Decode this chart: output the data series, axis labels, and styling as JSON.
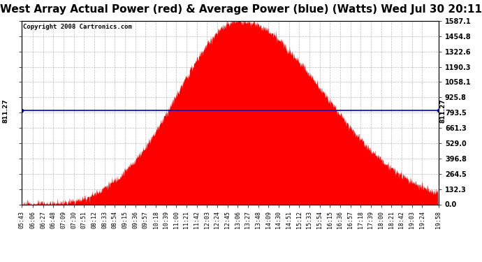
{
  "title": "West Array Actual Power (red) & Average Power (blue) (Watts) Wed Jul 30 20:11",
  "copyright": "Copyright 2008 Cartronics.com",
  "average_power": 811.27,
  "y_max": 1587.1,
  "y_ticks": [
    0.0,
    132.3,
    264.5,
    396.8,
    529.0,
    661.3,
    793.5,
    925.8,
    1058.1,
    1190.3,
    1322.6,
    1454.8,
    1587.1
  ],
  "x_labels": [
    "05:43",
    "06:06",
    "06:27",
    "06:48",
    "07:09",
    "07:30",
    "07:51",
    "08:12",
    "08:33",
    "08:54",
    "09:15",
    "09:36",
    "09:57",
    "10:18",
    "10:39",
    "11:00",
    "11:21",
    "11:42",
    "12:03",
    "12:24",
    "12:45",
    "13:06",
    "13:27",
    "13:48",
    "14:09",
    "14:30",
    "14:51",
    "15:12",
    "15:33",
    "15:54",
    "16:15",
    "16:36",
    "16:57",
    "17:18",
    "17:39",
    "18:00",
    "18:21",
    "18:42",
    "19:03",
    "19:24",
    "19:58"
  ],
  "fill_color": "#FF0000",
  "line_color": "#0000CC",
  "bg_color": "#FFFFFF",
  "plot_bg_color": "#FFFFFF",
  "grid_color": "#AAAAAA",
  "title_color": "#000000",
  "copyright_color": "#000000",
  "title_fontsize": 11,
  "copyright_fontsize": 6.5,
  "tick_label_fontsize": 6,
  "axis_label_fontsize": 6.5
}
